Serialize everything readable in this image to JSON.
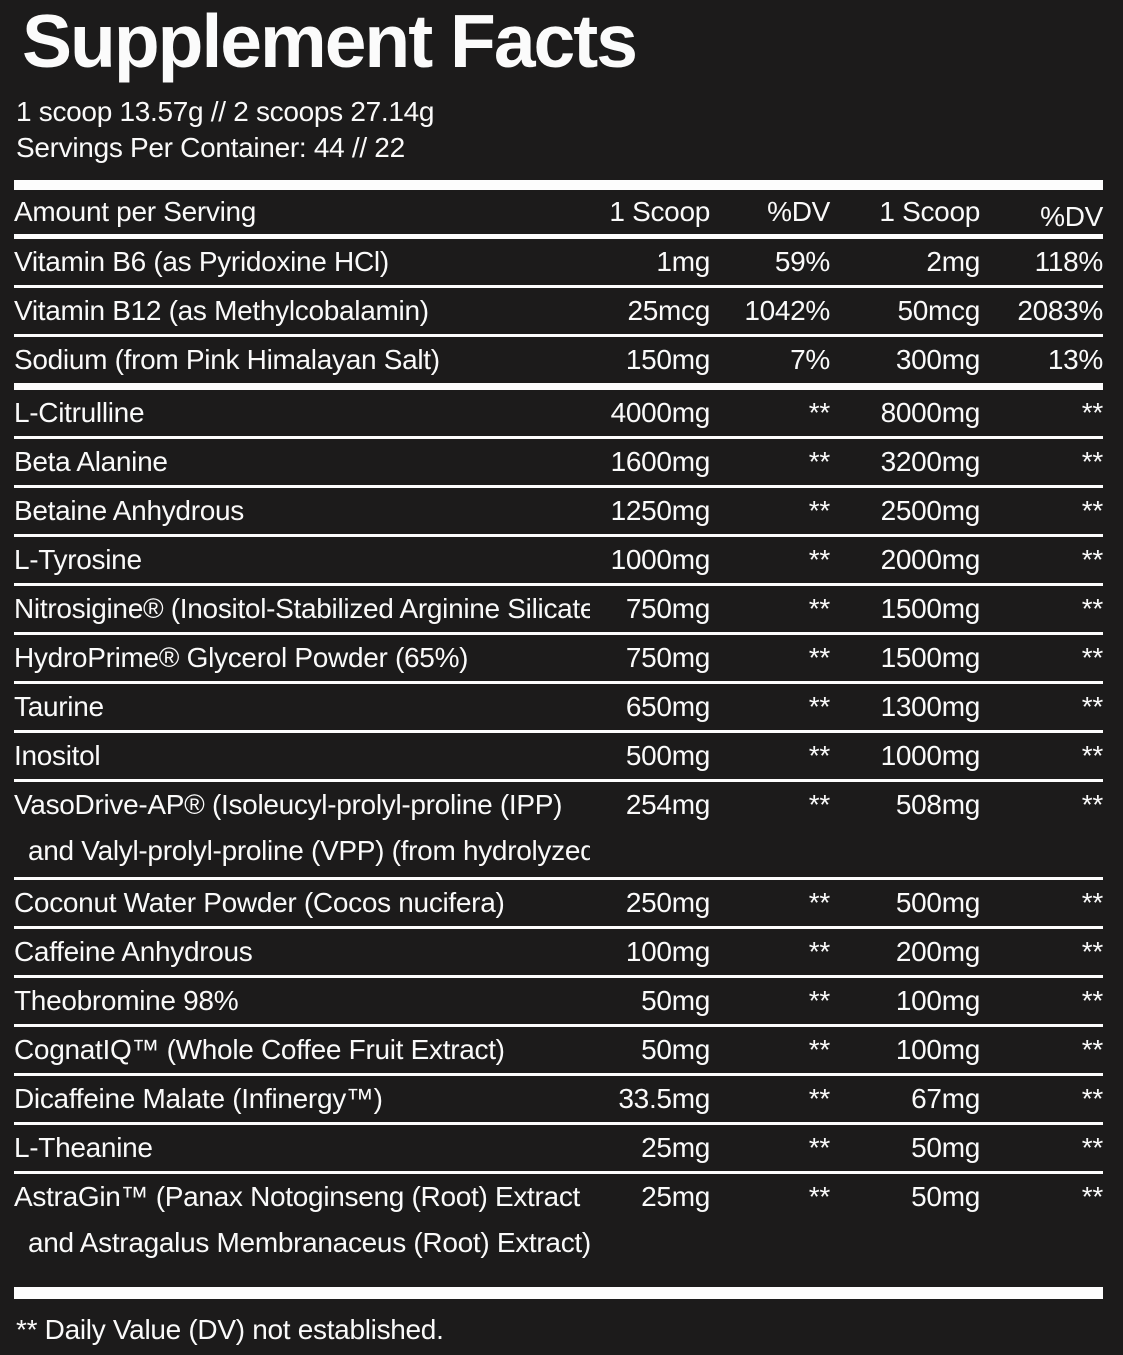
{
  "colors": {
    "background": "#1c1b1b",
    "text": "#fafafa",
    "rule": "#fdfdfd"
  },
  "title": "Supplement Facts",
  "serving_info": {
    "scoop_line": "1 scoop 13.57g // 2 scoops 27.14g",
    "servings_line": "Servings Per Container: 44 // 22"
  },
  "table": {
    "columns": [
      "Amount per Serving",
      "1 Scoop",
      "%DV",
      "1 Scoop",
      "%DV"
    ],
    "rows": [
      {
        "name": "Vitamin B6 (as Pyridoxine HCl)",
        "scoop1_amount": "1mg",
        "scoop1_dv": "59%",
        "scoop2_amount": "2mg",
        "scoop2_dv": "118%"
      },
      {
        "name": "Vitamin B12 (as Methylcobalamin)",
        "scoop1_amount": "25mcg",
        "scoop1_dv": "1042%",
        "scoop2_amount": "50mcg",
        "scoop2_dv": "2083%"
      },
      {
        "name": "Sodium (from Pink Himalayan Salt)",
        "scoop1_amount": "150mg",
        "scoop1_dv": "7%",
        "scoop2_amount": "300mg",
        "scoop2_dv": "13%",
        "thick_rule_below": true
      },
      {
        "name": "L-Citrulline",
        "scoop1_amount": "4000mg",
        "scoop1_dv": "**",
        "scoop2_amount": "8000mg",
        "scoop2_dv": "**"
      },
      {
        "name": "Beta Alanine",
        "scoop1_amount": "1600mg",
        "scoop1_dv": "**",
        "scoop2_amount": "3200mg",
        "scoop2_dv": "**"
      },
      {
        "name": "Betaine Anhydrous",
        "scoop1_amount": "1250mg",
        "scoop1_dv": "**",
        "scoop2_amount": "2500mg",
        "scoop2_dv": "**"
      },
      {
        "name": "L-Tyrosine",
        "scoop1_amount": "1000mg",
        "scoop1_dv": "**",
        "scoop2_amount": "2000mg",
        "scoop2_dv": "**"
      },
      {
        "name": "Nitrosigine® (Inositol-Stabilized Arginine Silicate)",
        "scoop1_amount": "750mg",
        "scoop1_dv": "**",
        "scoop2_amount": "1500mg",
        "scoop2_dv": "**"
      },
      {
        "name": "HydroPrime® Glycerol Powder (65%)",
        "scoop1_amount": "750mg",
        "scoop1_dv": "**",
        "scoop2_amount": "1500mg",
        "scoop2_dv": "**"
      },
      {
        "name": "Taurine",
        "scoop1_amount": "650mg",
        "scoop1_dv": "**",
        "scoop2_amount": "1300mg",
        "scoop2_dv": "**"
      },
      {
        "name": "Inositol",
        "scoop1_amount": "500mg",
        "scoop1_dv": "**",
        "scoop2_amount": "1000mg",
        "scoop2_dv": "**"
      },
      {
        "name": "VasoDrive-AP® (Isoleucyl-prolyl-proline (IPP)",
        "name_line2": "and Valyl-prolyl-proline (VPP) (from hydrolyzed milk casein)",
        "scoop1_amount": "254mg",
        "scoop1_dv": "**",
        "scoop2_amount": "508mg",
        "scoop2_dv": "**"
      },
      {
        "name": "Coconut Water Powder (Cocos nucifera)",
        "scoop1_amount": "250mg",
        "scoop1_dv": "**",
        "scoop2_amount": "500mg",
        "scoop2_dv": "**"
      },
      {
        "name": "Caffeine Anhydrous",
        "scoop1_amount": "100mg",
        "scoop1_dv": "**",
        "scoop2_amount": "200mg",
        "scoop2_dv": "**"
      },
      {
        "name": "Theobromine 98%",
        "scoop1_amount": "50mg",
        "scoop1_dv": "**",
        "scoop2_amount": "100mg",
        "scoop2_dv": "**"
      },
      {
        "name": "CognatIQ™ (Whole Coffee Fruit Extract)",
        "scoop1_amount": "50mg",
        "scoop1_dv": "**",
        "scoop2_amount": "100mg",
        "scoop2_dv": "**"
      },
      {
        "name": "Dicaffeine Malate (Infinergy™)",
        "scoop1_amount": "33.5mg",
        "scoop1_dv": "**",
        "scoop2_amount": "67mg",
        "scoop2_dv": "**"
      },
      {
        "name": "L-Theanine",
        "scoop1_amount": "25mg",
        "scoop1_dv": "**",
        "scoop2_amount": "50mg",
        "scoop2_dv": "**"
      },
      {
        "name": "AstraGin™ (Panax Notoginseng (Root) Extract",
        "name_line2": "and Astragalus Membranaceus (Root) Extract)",
        "scoop1_amount": "25mg",
        "scoop1_dv": "**",
        "scoop2_amount": "50mg",
        "scoop2_dv": "**"
      }
    ]
  },
  "footnote": "** Daily Value (DV) not established."
}
